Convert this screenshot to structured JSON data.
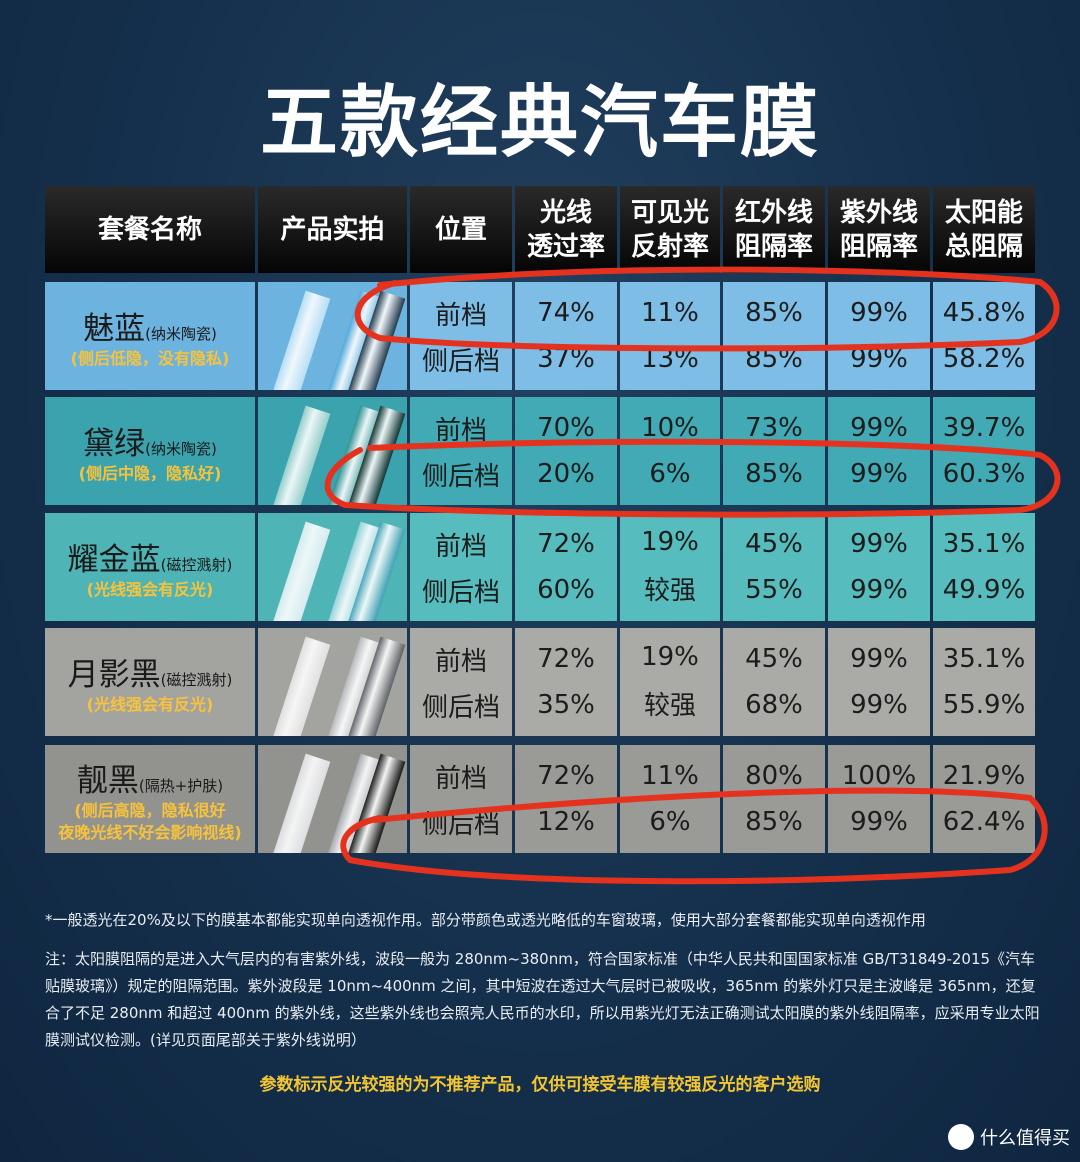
{
  "title": "五款经典汽车膜",
  "table": {
    "header": [
      [
        "套餐名称"
      ],
      [
        "产品实拍"
      ],
      [
        "位置"
      ],
      [
        "光线",
        "透过率"
      ],
      [
        "可见光",
        "反射率"
      ],
      [
        "红外线",
        "阻隔率"
      ],
      [
        "紫外线",
        "阻隔率"
      ],
      [
        "太阳能",
        "总阻隔"
      ]
    ],
    "rows": [
      {
        "name": "魅蓝",
        "spec": "(纳米陶瓷)",
        "note": [
          "(侧后低隐，没有隐私)"
        ],
        "positions": [
          [
            "前档",
            "74%",
            "11%",
            "85%",
            "99%",
            "45.8%"
          ],
          [
            "侧后档",
            "37%",
            "13%",
            "85%",
            "99%",
            "58.2%"
          ]
        ]
      },
      {
        "name": "黛绿",
        "spec": "(纳米陶瓷)",
        "note": [
          "(侧后中隐，隐私好)"
        ],
        "positions": [
          [
            "前档",
            "70%",
            "10%",
            "73%",
            "99%",
            "39.7%"
          ],
          [
            "侧后档",
            "20%",
            "6%",
            "85%",
            "99%",
            "60.3%"
          ]
        ]
      },
      {
        "name": "耀金蓝",
        "spec": "(磁控溅射)",
        "note": [
          "(光线强会有反光)"
        ],
        "positions": [
          [
            "前档",
            "72%",
            "19%",
            "45%",
            "99%",
            "35.1%"
          ],
          [
            "侧后档",
            "60%",
            "较强",
            "55%",
            "99%",
            "49.9%"
          ]
        ]
      },
      {
        "name": "月影黑",
        "spec": "(磁控溅射)",
        "note": [
          "(光线强会有反光)"
        ],
        "positions": [
          [
            "前档",
            "72%",
            "19%",
            "45%",
            "99%",
            "35.1%"
          ],
          [
            "侧后档",
            "35%",
            "较强",
            "68%",
            "99%",
            "55.9%"
          ]
        ]
      },
      {
        "name": "靓黑",
        "spec": "(隔热+护肤)",
        "note": [
          "(侧后高隐，隐私很好",
          "夜晚光线不好会影响视线)"
        ],
        "positions": [
          [
            "前档",
            "72%",
            "11%",
            "80%",
            "100%",
            "21.9%"
          ],
          [
            "侧后档",
            "12%",
            "6%",
            "85%",
            "99%",
            "62.4%"
          ]
        ]
      }
    ]
  },
  "notes": [
    "*一般透光在20%及以下的膜基本都能实现单向透视作用。部分带颜色或透光略低的车窗玻璃，使用大部分套餐都能实现单向透视作用",
    "注：太阳膜阻隔的是进入大气层内的有害紫外线，波段一般为 280nm~380nm，符合国家标准（中华人民共和国国家标准 GB/T31849-2015《汽车贴膜玻璃》）规定的阻隔范围。紫外波段是 10nm~400nm 之间，其中短波在透过大气层时已被吸收，365nm 的紫外灯只是主波峰是 365nm，还复合了不足 280nm 和超过 400nm 的紫外线，这些紫外线也会照亮人民币的水印，所以用紫光灯无法正确测试太阳膜的紫外线阻隔率，应采用专业太阳膜测试仪检测。(详见页面尾部关于紫外线说明）"
  ],
  "warning": "参数标示反光较强的为不推荐产品，仅供可接受车膜有较强反光的客户选购",
  "watermark": "什么值得买"
}
